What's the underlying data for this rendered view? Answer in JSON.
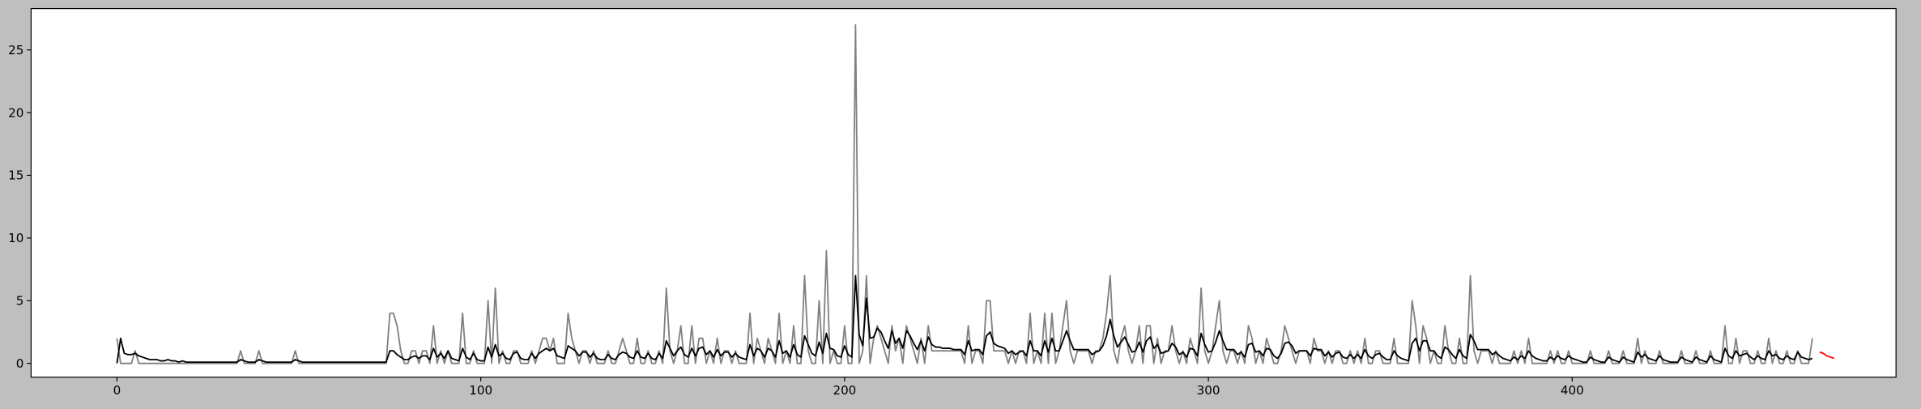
{
  "chart_data": {
    "type": "line",
    "xlim": [
      -23.6,
      489
    ],
    "ylim": [
      -1.1,
      28.3
    ],
    "xticks": [
      0,
      100,
      200,
      300,
      400
    ],
    "yticks": [
      0,
      5,
      10,
      15,
      20,
      25
    ],
    "series": [
      {
        "color": "#808080",
        "values": [
          2,
          0,
          0,
          0,
          0,
          1,
          0,
          0,
          0,
          0,
          0,
          0,
          0,
          0,
          0,
          0,
          0,
          0,
          0,
          0,
          0,
          0,
          0,
          0,
          0,
          0,
          0,
          0,
          0,
          0,
          0,
          0,
          0,
          0,
          1,
          0,
          0,
          0,
          0,
          1,
          0,
          0,
          0,
          0,
          0,
          0,
          0,
          0,
          0,
          1,
          0,
          0,
          0,
          0,
          0,
          0,
          0,
          0,
          0,
          0,
          0,
          0,
          0,
          0,
          0,
          0,
          0,
          0,
          0,
          0,
          0,
          0,
          0,
          0,
          0,
          4,
          4,
          3,
          1,
          0,
          0,
          1,
          1,
          0,
          1,
          1,
          0,
          3,
          0,
          1,
          0,
          1,
          0,
          0,
          0,
          4,
          0,
          0,
          1,
          0,
          0,
          0,
          5,
          0,
          6,
          0,
          1,
          0,
          0,
          1,
          1,
          0,
          0,
          0,
          1,
          0,
          1,
          2,
          2,
          1,
          2,
          0,
          0,
          0,
          4,
          2,
          1,
          0,
          1,
          1,
          0,
          1,
          0,
          0,
          0,
          1,
          0,
          0,
          1,
          2,
          1,
          0,
          0,
          2,
          0,
          0,
          1,
          0,
          0,
          1,
          0,
          6,
          1,
          0,
          1,
          3,
          0,
          0,
          3,
          0,
          2,
          2,
          0,
          1,
          0,
          2,
          0,
          1,
          1,
          0,
          1,
          0,
          0,
          0,
          4,
          0,
          2,
          1,
          0,
          2,
          1,
          0,
          4,
          0,
          1,
          0,
          3,
          0,
          0,
          7,
          1,
          0,
          0,
          5,
          0,
          9,
          0,
          1,
          0,
          0,
          3,
          0,
          0,
          27,
          0,
          1,
          7,
          0,
          2,
          3,
          2,
          1,
          0,
          3,
          1,
          2,
          0,
          3,
          2,
          1,
          0,
          2,
          0,
          3,
          1,
          1,
          1,
          1,
          1,
          1,
          1,
          1,
          1,
          0,
          3,
          0,
          1,
          1,
          0,
          5,
          5,
          1,
          1,
          1,
          1,
          0,
          1,
          0,
          1,
          1,
          0,
          4,
          0,
          1,
          0,
          4,
          0,
          4,
          0,
          1,
          3,
          5,
          1,
          0,
          1,
          1,
          1,
          1,
          0,
          1,
          1,
          2,
          4,
          7,
          1,
          0,
          2,
          3,
          1,
          0,
          1,
          3,
          0,
          3,
          3,
          0,
          2,
          0,
          1,
          1,
          3,
          1,
          0,
          1,
          0,
          2,
          1,
          0,
          6,
          1,
          0,
          1,
          3,
          5,
          1,
          0,
          1,
          1,
          0,
          1,
          0,
          3,
          2,
          0,
          1,
          0,
          2,
          1,
          0,
          0,
          1,
          3,
          2,
          1,
          0,
          1,
          1,
          1,
          0,
          2,
          1,
          1,
          0,
          1,
          0,
          1,
          1,
          0,
          0,
          1,
          0,
          1,
          0,
          2,
          0,
          0,
          1,
          1,
          0,
          0,
          0,
          2,
          0,
          0,
          0,
          0,
          5,
          3,
          0,
          3,
          2,
          0,
          1,
          0,
          0,
          3,
          1,
          0,
          0,
          2,
          0,
          0,
          7,
          1,
          0,
          1,
          1,
          1,
          0,
          1,
          0,
          0,
          0,
          0,
          1,
          0,
          1,
          0,
          2,
          0,
          0,
          0,
          0,
          0,
          1,
          0,
          1,
          0,
          0,
          1,
          0,
          0,
          0,
          0,
          0,
          1,
          0,
          0,
          0,
          0,
          1,
          0,
          0,
          0,
          1,
          0,
          0,
          0,
          2,
          0,
          1,
          0,
          0,
          0,
          1,
          0,
          0,
          0,
          0,
          0,
          1,
          0,
          0,
          0,
          1,
          0,
          0,
          0,
          1,
          0,
          0,
          0,
          3,
          0,
          0,
          2,
          0,
          1,
          1,
          0,
          0,
          1,
          0,
          0,
          2,
          0,
          1,
          0,
          0,
          1,
          0,
          0,
          1,
          0,
          0,
          0,
          2
        ]
      },
      {
        "color": "#000000",
        "values": [
          0,
          2,
          0.8,
          0.7,
          0.7,
          0.8,
          0.6,
          0.5,
          0.4,
          0.3,
          0.3,
          0.3,
          0.2,
          0.2,
          0.3,
          0.2,
          0.2,
          0.1,
          0.2,
          0.1,
          0.1,
          0.1,
          0.1,
          0.1,
          0.1,
          0.1,
          0.1,
          0.1,
          0.1,
          0.1,
          0.1,
          0.1,
          0.1,
          0.1,
          0.3,
          0.2,
          0.1,
          0.1,
          0.1,
          0.3,
          0.2,
          0.1,
          0.1,
          0.1,
          0.1,
          0.1,
          0.1,
          0.1,
          0.1,
          0.3,
          0.2,
          0.1,
          0.1,
          0.1,
          0.1,
          0.1,
          0.1,
          0.1,
          0.1,
          0.1,
          0.1,
          0.1,
          0.1,
          0.1,
          0.1,
          0.1,
          0.1,
          0.1,
          0.1,
          0.1,
          0.1,
          0.1,
          0.1,
          0.1,
          0.1,
          1,
          1,
          0.7,
          0.5,
          0.3,
          0.3,
          0.5,
          0.6,
          0.4,
          0.6,
          0.6,
          0.3,
          1.2,
          0.5,
          0.8,
          0.4,
          1,
          0.4,
          0.3,
          0.2,
          1.2,
          0.5,
          0.3,
          0.8,
          0.3,
          0.2,
          0.2,
          1.3,
          0.5,
          1.5,
          0.6,
          0.8,
          0.4,
          0.3,
          0.8,
          0.9,
          0.4,
          0.3,
          0.3,
          0.8,
          0.4,
          0.8,
          1,
          1.2,
          1,
          1.2,
          0.6,
          0.5,
          0.4,
          1.4,
          1.2,
          1,
          0.6,
          0.9,
          0.9,
          0.5,
          0.8,
          0.4,
          0.3,
          0.3,
          0.7,
          0.4,
          0.3,
          0.7,
          0.9,
          0.8,
          0.5,
          0.4,
          1,
          0.5,
          0.4,
          0.8,
          0.4,
          0.3,
          0.8,
          0.4,
          1.8,
          1.2,
          0.6,
          1,
          1.3,
          0.7,
          0.5,
          1.2,
          0.6,
          1.2,
          1.3,
          0.7,
          1,
          0.5,
          1.1,
          0.6,
          0.9,
          0.9,
          0.5,
          0.8,
          0.5,
          0.4,
          0.3,
          1.5,
          0.6,
          1.2,
          1,
          0.5,
          1.2,
          1,
          0.5,
          1.8,
          0.8,
          1,
          0.5,
          1.5,
          0.7,
          0.5,
          2.2,
          1.5,
          0.8,
          0.6,
          1.7,
          0.8,
          2.4,
          1.2,
          1.1,
          0.6,
          0.5,
          1.4,
          0.7,
          0.5,
          7,
          2.3,
          1.4,
          5.2,
          2,
          2.1,
          2.8,
          2.5,
          1.8,
          1.2,
          2.6,
          1.6,
          2,
          1.2,
          2.6,
          2.2,
          1.6,
          1.1,
          1.8,
          1,
          2.1,
          1.5,
          1.3,
          1.3,
          1.2,
          1.2,
          1.2,
          1.1,
          1.1,
          1.1,
          0.7,
          1.8,
          1,
          1.1,
          1.1,
          0.7,
          2.2,
          2.5,
          1.6,
          1.4,
          1.3,
          1.2,
          0.8,
          1,
          0.7,
          0.9,
          1,
          0.6,
          1.8,
          1,
          1,
          0.6,
          1.8,
          0.9,
          2,
          1,
          1,
          1.8,
          2.6,
          1.8,
          1.1,
          1.1,
          1.1,
          1.1,
          1.1,
          0.7,
          0.9,
          1,
          1.4,
          2.2,
          3.5,
          2.2,
          1.3,
          1.7,
          2.1,
          1.5,
          0.9,
          1,
          1.7,
          0.9,
          1.8,
          2.1,
          1.2,
          1.5,
          0.8,
          0.9,
          1,
          1.6,
          1.3,
          0.7,
          0.9,
          0.5,
          1.2,
          1.1,
          0.6,
          2.4,
          1.5,
          0.9,
          1,
          1.7,
          2.6,
          1.8,
          1.1,
          1.1,
          1.1,
          0.7,
          0.9,
          0.5,
          1.5,
          1.6,
          0.9,
          1,
          0.6,
          1.2,
          1.1,
          0.6,
          0.4,
          0.8,
          1.6,
          1.7,
          1.4,
          0.8,
          1,
          1,
          1,
          0.6,
          1.2,
          1.1,
          1.1,
          0.6,
          0.9,
          0.5,
          0.8,
          0.9,
          0.5,
          0.4,
          0.7,
          0.4,
          0.7,
          0.4,
          1.1,
          0.6,
          0.4,
          0.7,
          0.8,
          0.5,
          0.3,
          0.3,
          1,
          0.6,
          0.4,
          0.3,
          0.2,
          1.6,
          2,
          1,
          1.8,
          1.8,
          1,
          1,
          0.6,
          0.4,
          1.3,
          1.1,
          0.7,
          0.4,
          1.1,
          0.6,
          0.4,
          2.3,
          1.8,
          1.1,
          1.1,
          1.1,
          1.1,
          0.7,
          0.9,
          0.6,
          0.4,
          0.3,
          0.2,
          0.5,
          0.3,
          0.6,
          0.4,
          1,
          0.6,
          0.4,
          0.3,
          0.2,
          0.2,
          0.5,
          0.3,
          0.6,
          0.4,
          0.3,
          0.6,
          0.4,
          0.3,
          0.2,
          0.1,
          0.1,
          0.5,
          0.3,
          0.2,
          0.1,
          0.1,
          0.5,
          0.3,
          0.2,
          0.1,
          0.5,
          0.3,
          0.2,
          0.1,
          0.9,
          0.5,
          0.7,
          0.4,
          0.3,
          0.2,
          0.6,
          0.3,
          0.2,
          0.1,
          0.1,
          0.1,
          0.5,
          0.3,
          0.2,
          0.1,
          0.5,
          0.3,
          0.2,
          0.1,
          0.6,
          0.3,
          0.2,
          0.1,
          1.2,
          0.6,
          0.4,
          1,
          0.6,
          0.7,
          0.8,
          0.5,
          0.3,
          0.6,
          0.4,
          0.3,
          1,
          0.6,
          0.7,
          0.4,
          0.3,
          0.6,
          0.4,
          0.3,
          0.9,
          0.5,
          0.4,
          0.3,
          0.4
        ]
      },
      {
        "color": "#ff0000",
        "x": [
          468,
          469,
          470,
          471,
          472
        ],
        "values": [
          0.9,
          0.8,
          0.6,
          0.5,
          0.4
        ]
      }
    ]
  }
}
